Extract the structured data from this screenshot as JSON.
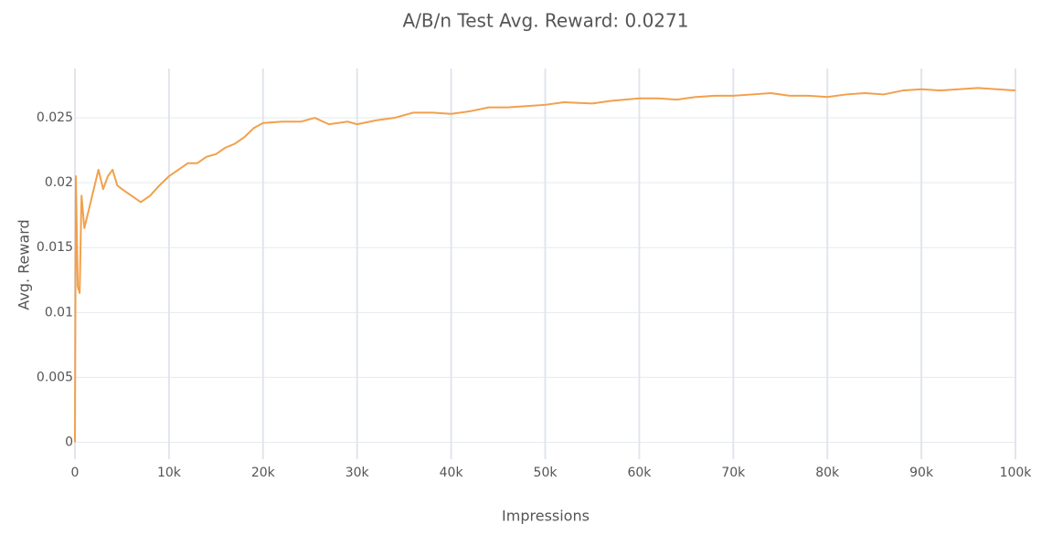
{
  "chart_data": {
    "type": "line",
    "title": "A/B/n Test Avg. Reward: 0.0271",
    "x_label": "Impressions",
    "y_label": "Avg. Reward",
    "x": [
      0,
      100,
      300,
      500,
      700,
      1000,
      1500,
      2000,
      2500,
      3000,
      3500,
      4000,
      4500,
      5000,
      6000,
      7000,
      8000,
      9000,
      10000,
      11000,
      12000,
      13000,
      14000,
      15000,
      16000,
      17000,
      18000,
      19000,
      20000,
      22000,
      24000,
      25500,
      27000,
      29000,
      30000,
      32000,
      34000,
      36000,
      38000,
      40000,
      42000,
      44000,
      46000,
      48000,
      50000,
      52000,
      55000,
      57000,
      60000,
      62000,
      64000,
      66000,
      68000,
      70000,
      72000,
      74000,
      76000,
      78000,
      80000,
      82000,
      84000,
      86000,
      88000,
      90000,
      92000,
      94000,
      96000,
      98000,
      100000
    ],
    "series": [
      {
        "name": "Avg. Reward",
        "color": "#f2a04c",
        "values": [
          0,
          0.0205,
          0.012,
          0.0115,
          0.019,
          0.0165,
          0.018,
          0.0195,
          0.021,
          0.0195,
          0.0205,
          0.021,
          0.0198,
          0.0195,
          0.019,
          0.0185,
          0.019,
          0.0198,
          0.0205,
          0.021,
          0.0215,
          0.0215,
          0.022,
          0.0222,
          0.0227,
          0.023,
          0.0235,
          0.0242,
          0.0246,
          0.0247,
          0.0247,
          0.025,
          0.0245,
          0.0247,
          0.0245,
          0.0248,
          0.025,
          0.0254,
          0.0254,
          0.0253,
          0.0255,
          0.0258,
          0.0258,
          0.0259,
          0.026,
          0.0262,
          0.0261,
          0.0263,
          0.0265,
          0.0265,
          0.0264,
          0.0266,
          0.0267,
          0.0267,
          0.0268,
          0.0269,
          0.0267,
          0.0267,
          0.0266,
          0.0268,
          0.0269,
          0.0268,
          0.0271,
          0.0272,
          0.0271,
          0.0272,
          0.0273,
          0.0272,
          0.0271
        ]
      }
    ],
    "xlim": [
      0,
      100000
    ],
    "ylim": [
      -0.0013,
      0.0288
    ],
    "xticks": [
      0,
      {
        "value": 10000,
        "label": "10k"
      },
      {
        "value": 20000,
        "label": "20k"
      },
      {
        "value": 30000,
        "label": "30k"
      },
      {
        "value": 40000,
        "label": "40k"
      },
      {
        "value": 50000,
        "label": "50k"
      },
      {
        "value": 60000,
        "label": "60k"
      },
      {
        "value": 70000,
        "label": "70k"
      },
      {
        "value": 80000,
        "label": "80k"
      },
      {
        "value": 90000,
        "label": "90k"
      },
      {
        "value": 100000,
        "label": "100k"
      }
    ],
    "yticks": [
      0,
      0.005,
      0.01,
      0.015,
      0.02,
      0.025
    ],
    "grid": true
  }
}
